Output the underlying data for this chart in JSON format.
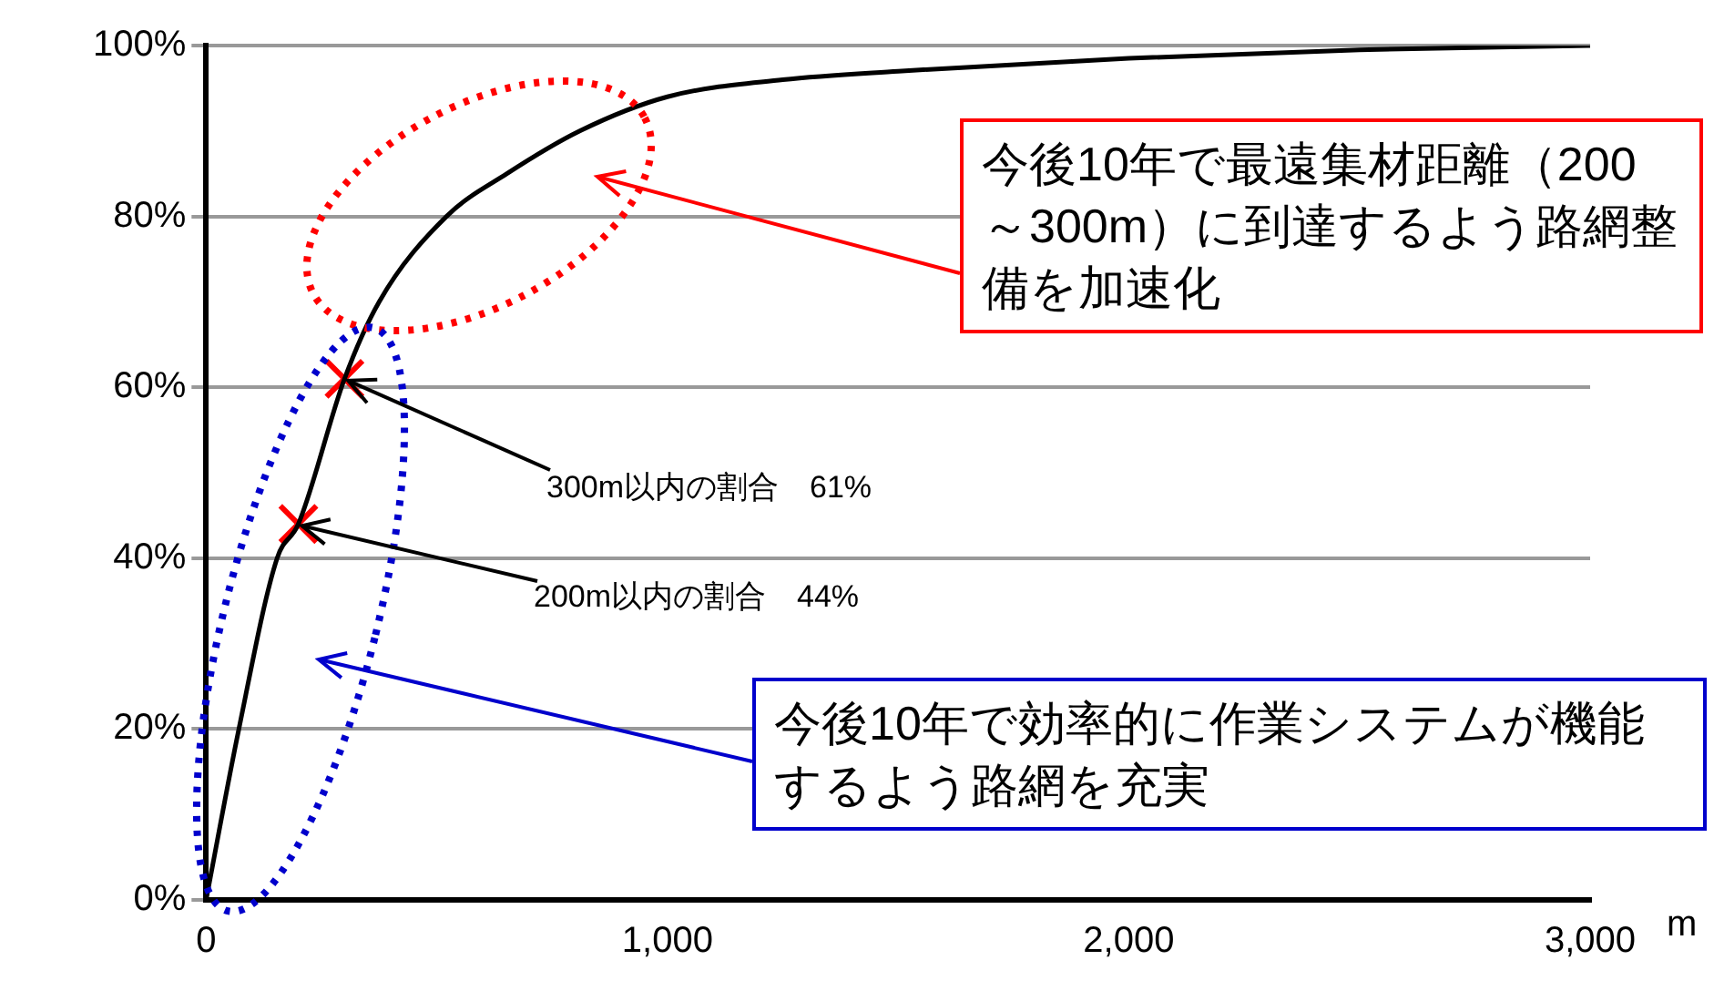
{
  "chart_data": {
    "type": "line",
    "xlabel": "m",
    "x": [
      0,
      71,
      154,
      200,
      300,
      375,
      521,
      652,
      810,
      1000,
      1250,
      1500,
      2000,
      2500,
      3000
    ],
    "series": [
      {
        "type": "line",
        "color": "#000000",
        "values": [
          0,
          20,
          40,
          44,
          61,
          70,
          80,
          85,
          90,
          94,
          96,
          97,
          98.5,
          99.5,
          100
        ]
      },
      {
        "type": "scatter",
        "x": [
          200,
          300
        ],
        "values": [
          44,
          61
        ],
        "color": "#ff0000",
        "marker": "cross"
      }
    ],
    "xlim": [
      0,
      3000
    ],
    "xticks": [
      0,
      {
        "value": 1000,
        "label": "1,000"
      },
      {
        "value": 2000,
        "label": "2,000"
      },
      {
        "value": 3000,
        "label": "3,000"
      }
    ],
    "ylim": [
      0,
      100
    ],
    "yticks": [
      {
        "value": 0,
        "label": "0%"
      },
      {
        "value": 20,
        "label": "20%"
      },
      {
        "value": 40,
        "label": "40%"
      },
      {
        "value": 60,
        "label": "60%"
      },
      {
        "value": 80,
        "label": "80%"
      },
      {
        "value": 100,
        "label": "100%"
      }
    ],
    "grid": "y",
    "annotations": [
      {
        "text": "300m以内の割合　61%",
        "x": 300,
        "y": 61
      },
      {
        "text": "200m以内の割合　44%",
        "x": 200,
        "y": 44
      },
      "今後10年で最遠集材距離（200～300m）に到達するよう路網整備を加速化",
      "今後10年で効率的に作業システムが機能するよう路網を充実"
    ]
  }
}
